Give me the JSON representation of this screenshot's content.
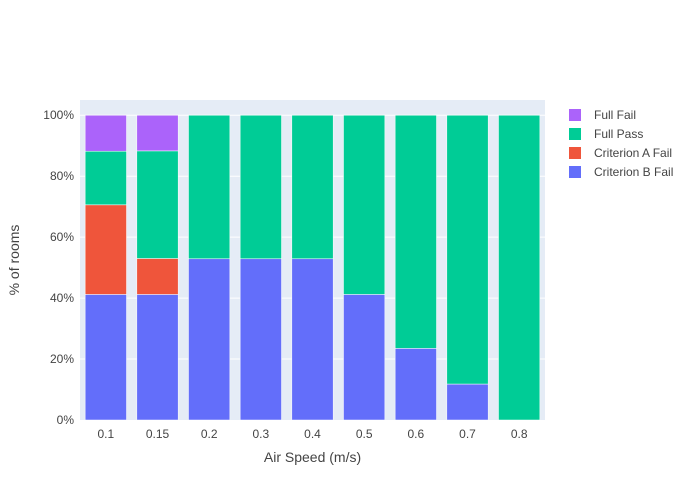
{
  "chart_data": {
    "type": "bar",
    "barmode": "stack",
    "categories": [
      "0.1",
      "0.15",
      "0.2",
      "0.3",
      "0.4",
      "0.5",
      "0.6",
      "0.7",
      "0.8"
    ],
    "series": [
      {
        "name": "Criterion B Fail",
        "color": "#636efa",
        "values": [
          41.2,
          41.2,
          52.9,
          52.9,
          52.9,
          41.2,
          23.5,
          11.8,
          0
        ]
      },
      {
        "name": "Criterion A Fail",
        "color": "#ef553b",
        "values": [
          29.4,
          11.8,
          0,
          0,
          0,
          0,
          0,
          0,
          0
        ]
      },
      {
        "name": "Full Pass",
        "color": "#00cc96",
        "values": [
          17.6,
          35.3,
          47.1,
          47.1,
          47.1,
          58.8,
          76.5,
          88.2,
          100
        ]
      },
      {
        "name": "Full Fail",
        "color": "#ab63fa",
        "values": [
          11.8,
          11.7,
          0,
          0,
          0,
          0,
          0,
          0,
          0
        ]
      }
    ],
    "legend_order": [
      "Full Fail",
      "Full Pass",
      "Criterion A Fail",
      "Criterion B Fail"
    ],
    "xlabel": "Air Speed (m/s)",
    "ylabel": "% of rooms",
    "ylim": [
      0,
      105
    ],
    "yticks": [
      0,
      20,
      40,
      60,
      80,
      100
    ],
    "ytick_labels": [
      "0%",
      "20%",
      "40%",
      "60%",
      "80%",
      "100%"
    ],
    "grid": true,
    "legend_position": "right",
    "plot_background": "#e5ecf6"
  }
}
